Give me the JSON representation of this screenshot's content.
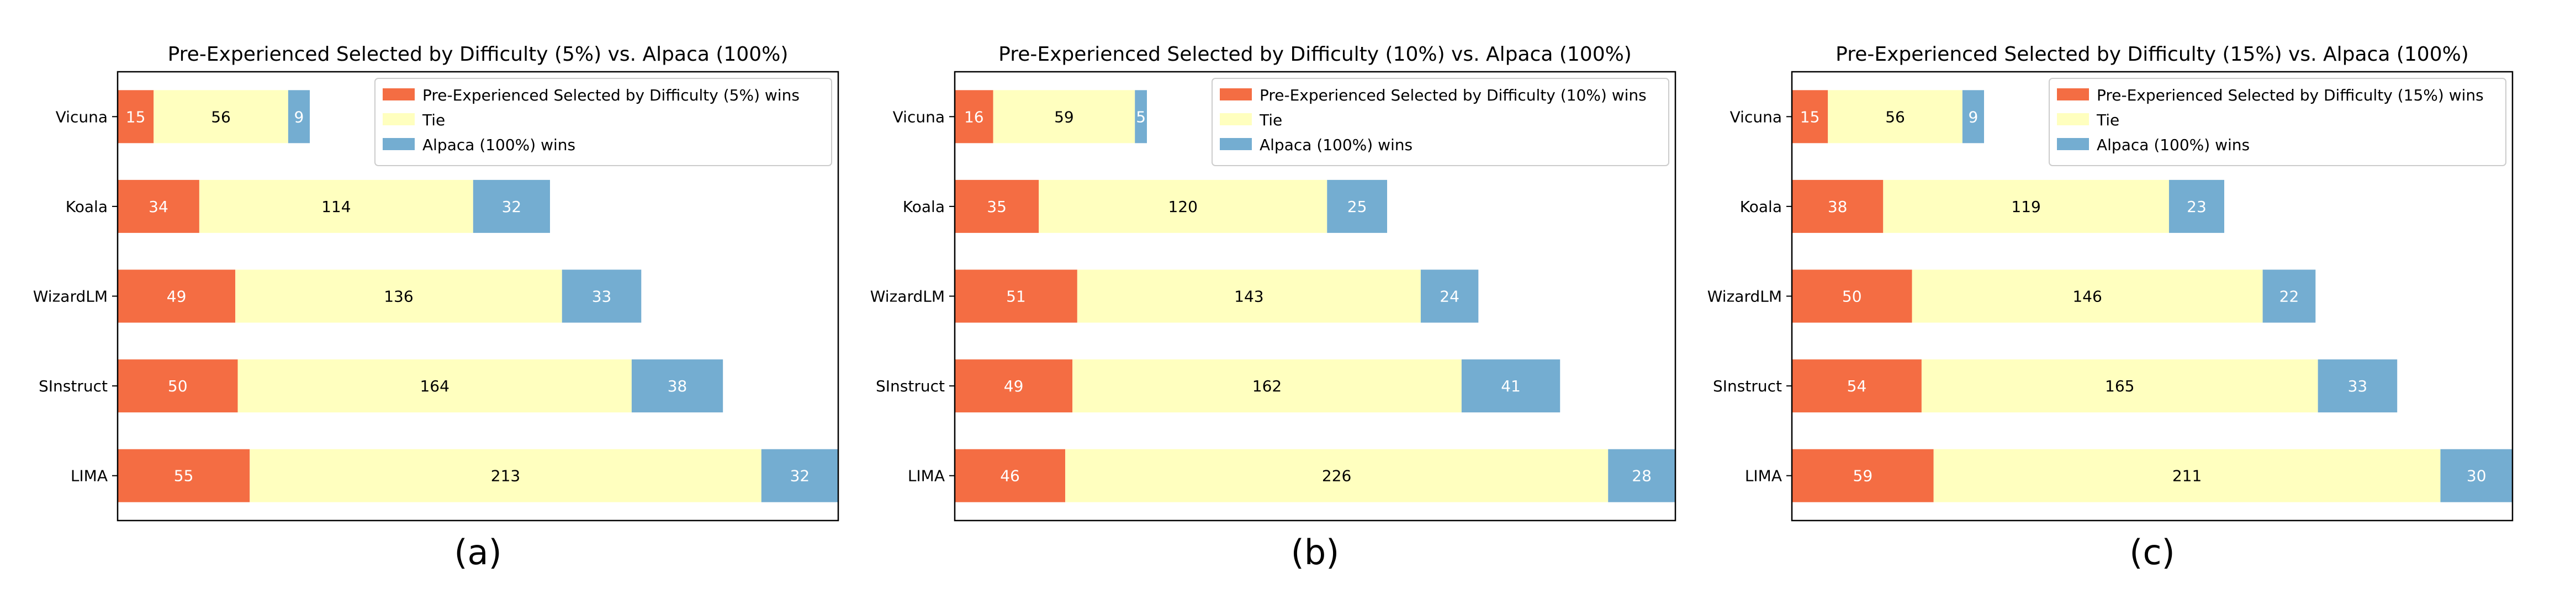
{
  "chart_data": [
    {
      "type": "bar",
      "orientation": "horizontal-stacked",
      "panel_label": "(a)",
      "title": "Pre-Experienced Selected by Difficulty (5%) vs. Alpaca (100%)",
      "categories": [
        "Vicuna",
        "Koala",
        "WizardLM",
        "SInstruct",
        "LIMA"
      ],
      "series": [
        {
          "name": "Pre-Experienced Selected by Difficulty (5%) wins",
          "color": "#f46d43",
          "label_color": "#ffffff",
          "values": [
            15,
            34,
            49,
            50,
            55
          ]
        },
        {
          "name": "Tie",
          "color": "#ffffbf",
          "label_color": "#000000",
          "values": [
            56,
            114,
            136,
            164,
            213
          ]
        },
        {
          "name": "Alpaca (100%) wins",
          "color": "#74add1",
          "label_color": "#ffffff",
          "values": [
            9,
            32,
            33,
            38,
            32
          ]
        }
      ],
      "xlim": [
        0,
        300
      ],
      "legend_position": "top-right"
    },
    {
      "type": "bar",
      "orientation": "horizontal-stacked",
      "panel_label": "(b)",
      "title": "Pre-Experienced Selected by Difficulty (10%) vs. Alpaca (100%)",
      "categories": [
        "Vicuna",
        "Koala",
        "WizardLM",
        "SInstruct",
        "LIMA"
      ],
      "series": [
        {
          "name": "Pre-Experienced Selected by Difficulty (10%) wins",
          "color": "#f46d43",
          "label_color": "#ffffff",
          "values": [
            16,
            35,
            51,
            49,
            46
          ]
        },
        {
          "name": "Tie",
          "color": "#ffffbf",
          "label_color": "#000000",
          "values": [
            59,
            120,
            143,
            162,
            226
          ]
        },
        {
          "name": "Alpaca (100%) wins",
          "color": "#74add1",
          "label_color": "#ffffff",
          "values": [
            5,
            25,
            24,
            41,
            28
          ]
        }
      ],
      "xlim": [
        0,
        300
      ],
      "legend_position": "top-right"
    },
    {
      "type": "bar",
      "orientation": "horizontal-stacked",
      "panel_label": "(c)",
      "title": "Pre-Experienced Selected by Difficulty (15%) vs. Alpaca (100%)",
      "categories": [
        "Vicuna",
        "Koala",
        "WizardLM",
        "SInstruct",
        "LIMA"
      ],
      "series": [
        {
          "name": "Pre-Experienced Selected by Difficulty (15%) wins",
          "color": "#f46d43",
          "label_color": "#ffffff",
          "values": [
            15,
            38,
            50,
            54,
            59
          ]
        },
        {
          "name": "Tie",
          "color": "#ffffbf",
          "label_color": "#000000",
          "values": [
            56,
            119,
            146,
            165,
            211
          ]
        },
        {
          "name": "Alpaca (100%) wins",
          "color": "#74add1",
          "label_color": "#ffffff",
          "values": [
            9,
            23,
            22,
            33,
            30
          ]
        }
      ],
      "xlim": [
        0,
        300
      ],
      "legend_position": "top-right"
    }
  ]
}
